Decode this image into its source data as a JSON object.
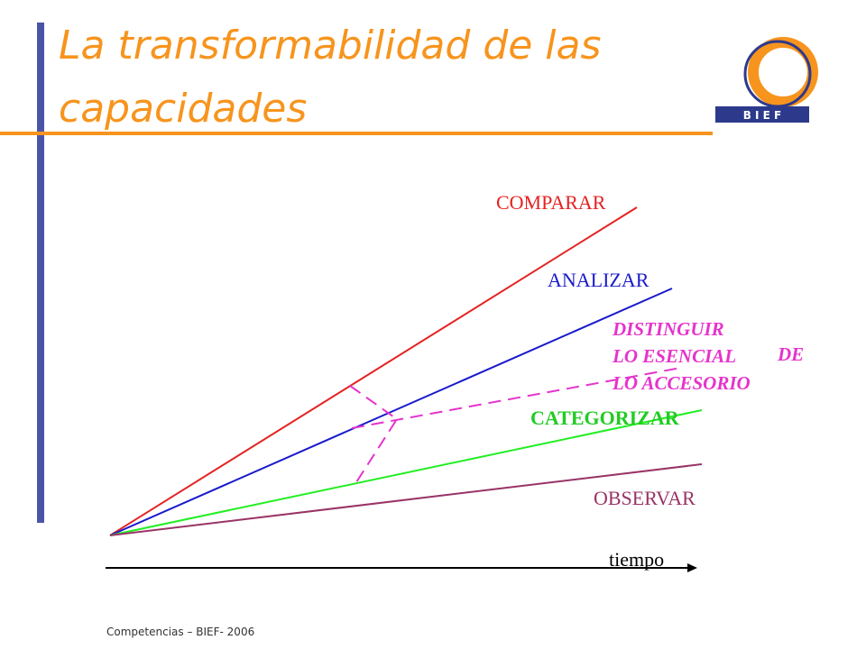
{
  "header": {
    "title_lines": [
      "La transformabilidad de las",
      "capacidades"
    ],
    "logo_text": "B I E F"
  },
  "diagram": {
    "labels": {
      "comparar": "COMPARAR",
      "analizar": "ANALIZAR",
      "distinguir": [
        "DISTINGUIR",
        "LO ESENCIAL",
        "DE",
        "LO ACCESORIO"
      ],
      "categorizar": "CATEGORIZAR",
      "observar": "OBSERVAR",
      "axis": "tiempo"
    }
  },
  "footer": {
    "text": "Competencias – BIEF- 2006"
  }
}
